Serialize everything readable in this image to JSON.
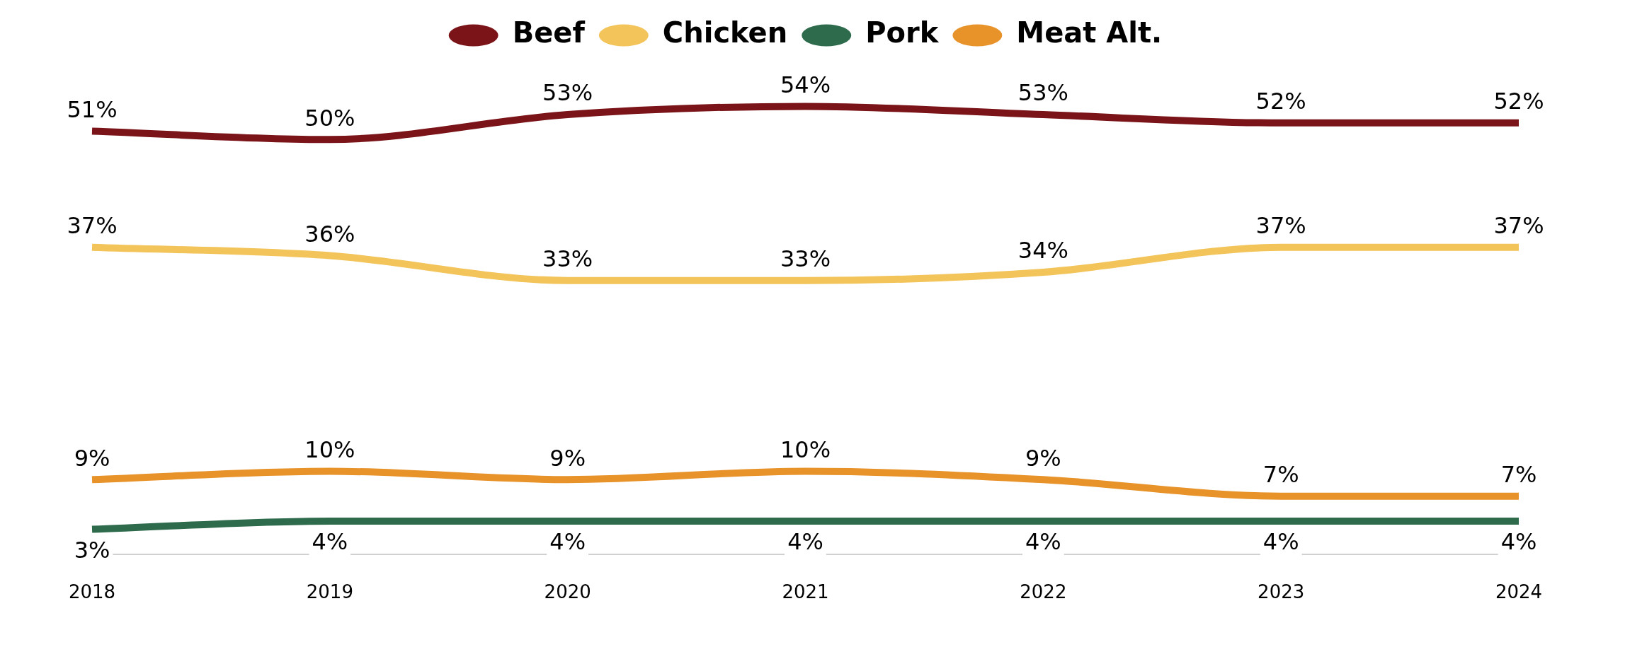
{
  "chart_data": {
    "type": "line",
    "categories": [
      "2018",
      "2019",
      "2020",
      "2021",
      "2022",
      "2023",
      "2024"
    ],
    "series": [
      {
        "name": "Beef",
        "color": "#7b1419",
        "values": [
          51,
          50,
          53,
          54,
          53,
          52,
          52
        ],
        "value_labels": [
          "51%",
          "50%",
          "53%",
          "54%",
          "53%",
          "52%",
          "52%"
        ]
      },
      {
        "name": "Chicken",
        "color": "#f2c45a",
        "values": [
          37,
          36,
          33,
          33,
          34,
          37,
          37
        ],
        "value_labels": [
          "37%",
          "36%",
          "33%",
          "33%",
          "34%",
          "37%",
          "37%"
        ]
      },
      {
        "name": "Pork",
        "color": "#2e6b4c",
        "values": [
          3,
          4,
          4,
          4,
          4,
          4,
          4
        ],
        "value_labels": [
          "3%",
          "4%",
          "4%",
          "4%",
          "4%",
          "4%",
          "4%"
        ]
      },
      {
        "name": "Meat Alt.",
        "color": "#e8922a",
        "values": [
          9,
          10,
          9,
          10,
          9,
          7,
          7
        ],
        "value_labels": [
          "9%",
          "10%",
          "9%",
          "10%",
          "9%",
          "7%",
          "7%"
        ]
      }
    ],
    "legend": "top",
    "grid": false,
    "line_style": "solid",
    "tick_labels": "x"
  }
}
